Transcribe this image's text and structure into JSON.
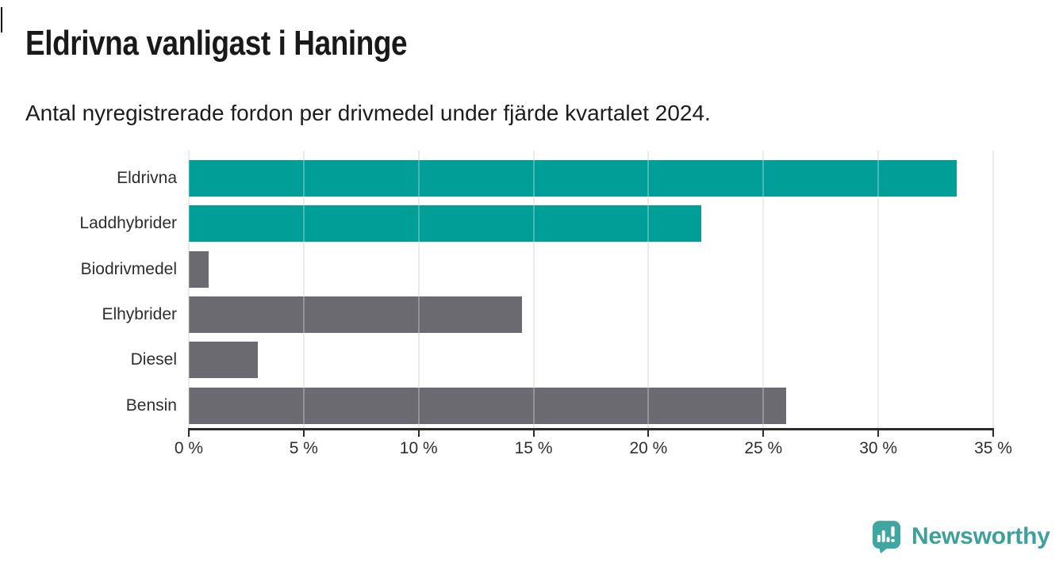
{
  "header": {
    "title": "Eldrivna vanligast i Haninge",
    "subtitle": "Antal nyregistrerade fordon per drivmedel under fjärde kvartalet 2024."
  },
  "chart_data": {
    "type": "bar",
    "orientation": "horizontal",
    "title": "Eldrivna vanligast i Haninge",
    "subtitle": "Antal nyregistrerade fordon per drivmedel under fjärde kvartalet 2024.",
    "categories": [
      "Eldrivna",
      "Laddhybrider",
      "Biodrivmedel",
      "Elhybrider",
      "Diesel",
      "Bensin"
    ],
    "values": [
      33.4,
      22.3,
      0.85,
      14.5,
      3.0,
      26.0
    ],
    "unit": "%",
    "bar_colors": [
      "#009e97",
      "#009e97",
      "#6b6a70",
      "#6b6a70",
      "#6b6a70",
      "#6b6a70"
    ],
    "highlight_color": "#009e97",
    "default_color": "#6b6a70",
    "xlim": [
      0,
      35
    ],
    "x_tick_values": [
      0,
      5,
      10,
      15,
      20,
      25,
      30,
      35
    ],
    "x_tick_labels": [
      "0 %",
      "5 %",
      "10 %",
      "15 %",
      "20 %",
      "25 %",
      "30 %",
      "35 %"
    ],
    "grid": true,
    "gridline_color": "#e4e4e4",
    "axis_color": "#2b2b2b",
    "legend": "none",
    "background": "#ffffff"
  },
  "footer": {
    "brand_label": "Newsworthy",
    "brand_color": "#3f9f99",
    "icon": "newsworthy-chart-bubble-icon"
  }
}
